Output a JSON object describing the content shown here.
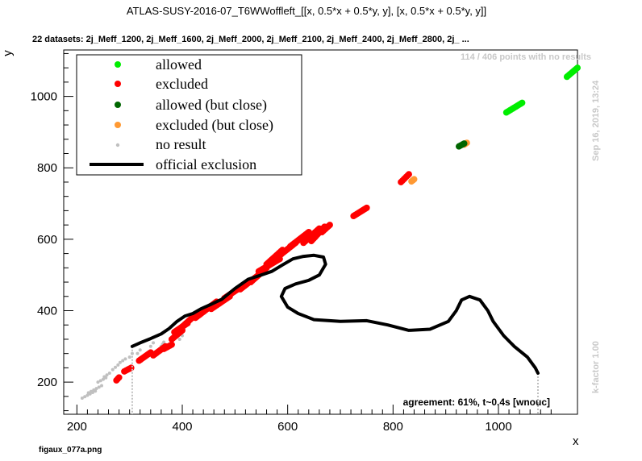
{
  "chart_data": {
    "type": "scatter",
    "title": "ATLAS-SUSY-2016-07_T6WWoffleft_[[x, 0.5*x + 0.5*y, y], [x, 0.5*x + 0.5*y, y]]",
    "subtitle": "22 datasets: 2j_Meff_1200, 2j_Meff_1600, 2j_Meff_2000, 2j_Meff_2100, 2j_Meff_2400, 2j_Meff_2800, 2j_ ...",
    "xlabel": "x",
    "ylabel": "y",
    "xlim": [
      175,
      1150
    ],
    "ylim": [
      110,
      1130
    ],
    "xticks": [
      200,
      400,
      600,
      800,
      1000
    ],
    "yticks": [
      200,
      400,
      600,
      800,
      1000
    ],
    "no_result_note": "114 / 406 points with no results",
    "timestamp": "Sep 16, 2019, 13:24",
    "kfactor": "k-factor 1.00",
    "agreement": "agreement: 61%, t~0.4s [wnouc]",
    "filename": "figaux_077a.png",
    "legend": {
      "position": "top-left",
      "entries": [
        {
          "label": "allowed",
          "color": "#00ee00",
          "kind": "marker"
        },
        {
          "label": "excluded",
          "color": "#ff0000",
          "kind": "marker"
        },
        {
          "label": "allowed (but close)",
          "color": "#006600",
          "kind": "marker"
        },
        {
          "label": "excluded (but close)",
          "color": "#ff9933",
          "kind": "marker"
        },
        {
          "label": "no result",
          "color": "#c0c0c0",
          "kind": "small-marker"
        },
        {
          "label": "official exclusion",
          "color": "#000000",
          "kind": "line"
        }
      ]
    },
    "series": [
      {
        "name": "no result",
        "color": "#c0c0c0",
        "segments": [
          [
            210,
            155,
            235,
            175
          ],
          [
            222,
            170,
            247,
            190
          ],
          [
            240,
            200,
            255,
            212
          ],
          [
            252,
            215,
            262,
            225
          ],
          [
            268,
            235,
            278,
            248
          ],
          [
            282,
            255,
            292,
            265
          ],
          [
            300,
            270,
            305,
            280
          ],
          [
            315,
            280,
            320,
            290
          ],
          [
            340,
            300,
            345,
            310
          ],
          [
            360,
            300,
            365,
            312
          ],
          [
            395,
            320,
            400,
            330
          ]
        ]
      },
      {
        "name": "excluded",
        "color": "#ff0000",
        "segments": [
          [
            275,
            205,
            280,
            213
          ],
          [
            290,
            230,
            303,
            240
          ],
          [
            318,
            260,
            340,
            283
          ],
          [
            345,
            275,
            368,
            300
          ],
          [
            365,
            293,
            380,
            305
          ],
          [
            380,
            320,
            400,
            345
          ],
          [
            385,
            340,
            410,
            365
          ],
          [
            400,
            355,
            430,
            395
          ],
          [
            425,
            380,
            465,
            425
          ],
          [
            455,
            405,
            490,
            440
          ],
          [
            480,
            435,
            515,
            470
          ],
          [
            510,
            460,
            545,
            500
          ],
          [
            530,
            480,
            560,
            520
          ],
          [
            545,
            510,
            585,
            545
          ],
          [
            560,
            530,
            590,
            570
          ],
          [
            585,
            555,
            615,
            590
          ],
          [
            605,
            580,
            640,
            620
          ],
          [
            630,
            590,
            660,
            630
          ],
          [
            645,
            595,
            670,
            635
          ],
          [
            665,
            620,
            680,
            640
          ],
          [
            725,
            665,
            750,
            688
          ],
          [
            815,
            760,
            830,
            782
          ]
        ]
      },
      {
        "name": "excluded (but close)",
        "color": "#ff9933",
        "segments": [
          [
            835,
            762,
            840,
            768
          ],
          [
            935,
            865,
            940,
            870
          ]
        ]
      },
      {
        "name": "allowed (but close)",
        "color": "#006600",
        "segments": [
          [
            925,
            860,
            935,
            868
          ]
        ]
      },
      {
        "name": "allowed",
        "color": "#00ee00",
        "segments": [
          [
            1015,
            955,
            1045,
            982
          ],
          [
            1130,
            1055,
            1150,
            1080
          ]
        ]
      },
      {
        "name": "official exclusion",
        "color": "#000000",
        "line": [
          [
            305,
            300
          ],
          [
            320,
            310
          ],
          [
            340,
            322
          ],
          [
            360,
            335
          ],
          [
            375,
            350
          ],
          [
            390,
            370
          ],
          [
            405,
            385
          ],
          [
            420,
            392
          ],
          [
            435,
            405
          ],
          [
            455,
            418
          ],
          [
            475,
            432
          ],
          [
            500,
            462
          ],
          [
            525,
            488
          ],
          [
            550,
            500
          ],
          [
            570,
            510
          ],
          [
            590,
            528
          ],
          [
            610,
            545
          ],
          [
            630,
            552
          ],
          [
            650,
            555
          ],
          [
            668,
            550
          ],
          [
            672,
            530
          ],
          [
            660,
            500
          ],
          [
            640,
            485
          ],
          [
            615,
            475
          ],
          [
            595,
            462
          ],
          [
            588,
            440
          ],
          [
            600,
            410
          ],
          [
            620,
            392
          ],
          [
            650,
            375
          ],
          [
            700,
            370
          ],
          [
            750,
            372
          ],
          [
            790,
            360
          ],
          [
            830,
            345
          ],
          [
            870,
            348
          ],
          [
            905,
            370
          ],
          [
            920,
            400
          ],
          [
            930,
            430
          ],
          [
            945,
            440
          ],
          [
            965,
            430
          ],
          [
            980,
            400
          ],
          [
            990,
            370
          ],
          [
            1010,
            330
          ],
          [
            1030,
            300
          ],
          [
            1055,
            270
          ],
          [
            1070,
            240
          ],
          [
            1075,
            225
          ]
        ]
      }
    ]
  }
}
